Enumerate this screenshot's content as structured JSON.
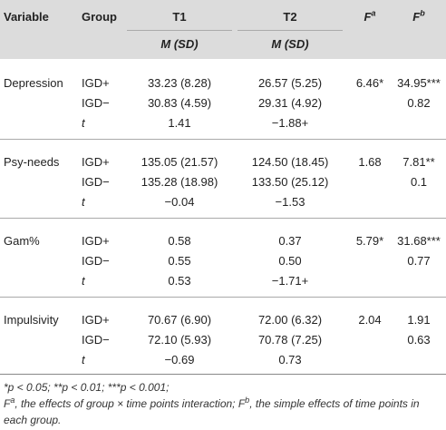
{
  "header": {
    "variable": "Variable",
    "group": "Group",
    "t1": "T1",
    "t2": "T2",
    "fa_base": "F",
    "fa_sup": "a",
    "fb_base": "F",
    "fb_sup": "b",
    "msd": "M (SD)"
  },
  "sections": [
    {
      "variable": "Depression",
      "rows": [
        {
          "group": "IGD+",
          "t1": "33.23 (8.28)",
          "t2": "26.57 (5.25)",
          "fa": "6.46*",
          "fb": "34.95***"
        },
        {
          "group": "IGD−",
          "t1": "30.83 (4.59)",
          "t2": "29.31 (4.92)",
          "fa": "",
          "fb": "0.82"
        },
        {
          "group": "t",
          "t1": "1.41",
          "t2": "−1.88+",
          "fa": "",
          "fb": ""
        }
      ]
    },
    {
      "variable": "Psy-needs",
      "rows": [
        {
          "group": "IGD+",
          "t1": "135.05 (21.57)",
          "t2": "124.50 (18.45)",
          "fa": "1.68",
          "fb": "7.81**"
        },
        {
          "group": "IGD−",
          "t1": "135.28 (18.98)",
          "t2": "133.50 (25.12)",
          "fa": "",
          "fb": "0.1"
        },
        {
          "group": "t",
          "t1": "−0.04",
          "t2": "−1.53",
          "fa": "",
          "fb": ""
        }
      ]
    },
    {
      "variable": "Gam%",
      "rows": [
        {
          "group": "IGD+",
          "t1": "0.58",
          "t2": "0.37",
          "fa": "5.79*",
          "fb": "31.68***"
        },
        {
          "group": "IGD−",
          "t1": "0.55",
          "t2": "0.50",
          "fa": "",
          "fb": "0.77"
        },
        {
          "group": "t",
          "t1": "0.53",
          "t2": "−1.71+",
          "fa": "",
          "fb": ""
        }
      ]
    },
    {
      "variable": "Impulsivity",
      "rows": [
        {
          "group": "IGD+",
          "t1": "70.67 (6.90)",
          "t2": "72.00 (6.32)",
          "fa": "2.04",
          "fb": "1.91"
        },
        {
          "group": "IGD−",
          "t1": "72.10 (5.93)",
          "t2": "70.78 (7.25)",
          "fa": "",
          "fb": "0.63"
        },
        {
          "group": "t",
          "t1": "−0.69",
          "t2": "0.73",
          "fa": "",
          "fb": ""
        }
      ]
    }
  ],
  "footnote": {
    "line1": "*p < 0.05; **p < 0.01; ***p < 0.001;",
    "line2a_base": "F",
    "line2a_sup": "a",
    "line2b": ", the effects of group × time points interaction; ",
    "line2c_base": "F",
    "line2c_sup": "b",
    "line2d": ", the simple effects of time points in",
    "line3": "each group."
  }
}
